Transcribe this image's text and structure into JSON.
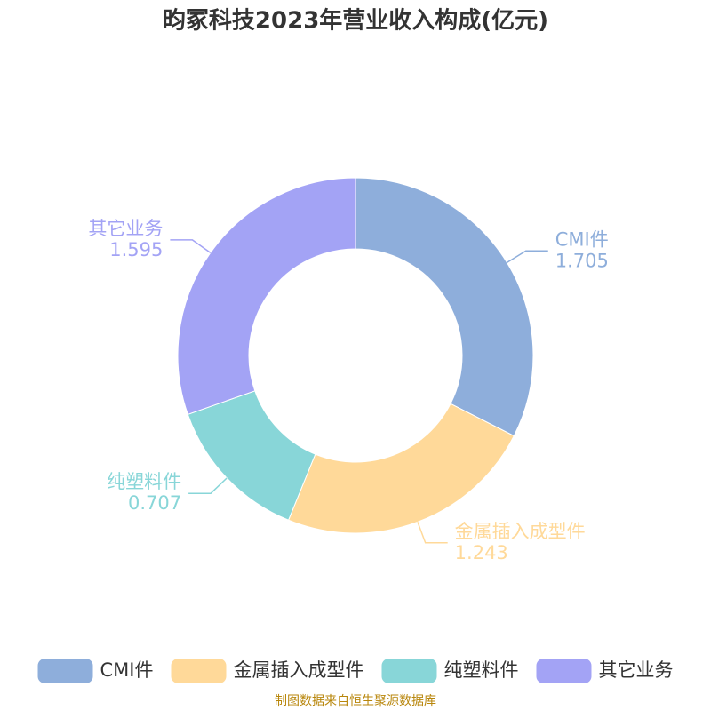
{
  "chart_data": {
    "type": "donut",
    "title": "昀冢科技2023年营业收入构成(亿元)",
    "categories": [
      "CMI件",
      "金属插入成型件",
      "纯塑料件",
      "其它业务"
    ],
    "values": [
      1.705,
      1.243,
      0.707,
      1.595
    ],
    "colors": [
      "#8eaedb",
      "#ffd999",
      "#88d6d8",
      "#a3a3f5"
    ],
    "legend": "bottom",
    "source": "制图数据来自恒生聚源数据库"
  }
}
